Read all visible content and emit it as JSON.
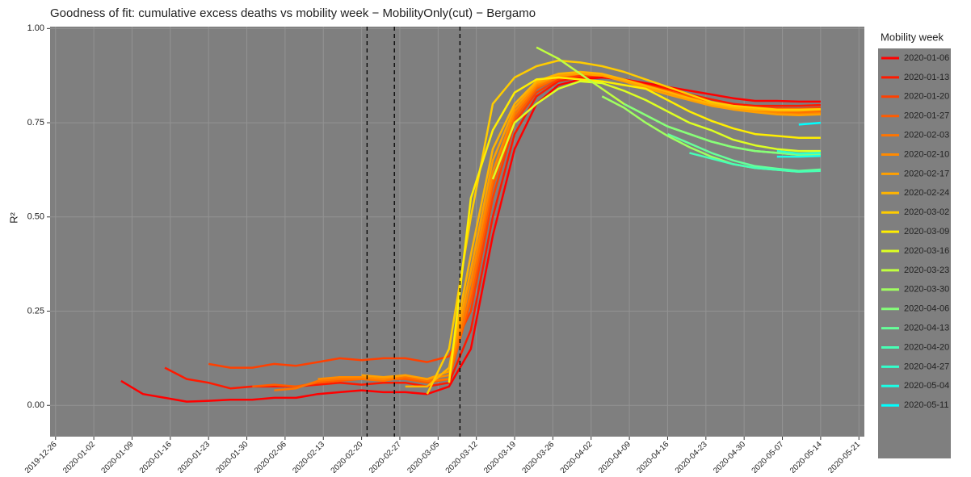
{
  "chart_data": {
    "type": "line",
    "title": "Goodness of fit: cumulative excess deaths vs mobility week − MobilityOnly(cut) − Bergamo",
    "y_label": "R²",
    "legend_title": "Mobility week",
    "legend": "right",
    "grid": true,
    "xlim": [
      "2019-12-25",
      "2020-05-22"
    ],
    "xticks": [
      "2019-12-26",
      "2020-01-02",
      "2020-01-09",
      "2020-01-16",
      "2020-01-23",
      "2020-01-30",
      "2020-02-06",
      "2020-02-13",
      "2020-02-20",
      "2020-02-27",
      "2020-03-05",
      "2020-03-12",
      "2020-03-19",
      "2020-03-26",
      "2020-04-02",
      "2020-04-09",
      "2020-04-16",
      "2020-04-23",
      "2020-04-30",
      "2020-05-07",
      "2020-05-14",
      "2020-05-21"
    ],
    "ylim": [
      -0.083,
      1.005
    ],
    "yticks": [
      {
        "value": 0,
        "label": "0.00"
      },
      {
        "value": 0.25,
        "label": "0.25"
      },
      {
        "value": 0.5,
        "label": "0.50"
      },
      {
        "value": 0.75,
        "label": "0.75"
      },
      {
        "value": 1,
        "label": "1.00"
      }
    ],
    "vlines": [
      "2020-02-21",
      "2020-02-26",
      "2020-03-09"
    ],
    "x": [
      "2020-01-07",
      "2020-01-11",
      "2020-01-15",
      "2020-01-19",
      "2020-01-23",
      "2020-01-27",
      "2020-01-31",
      "2020-02-04",
      "2020-02-08",
      "2020-02-12",
      "2020-02-16",
      "2020-02-20",
      "2020-02-24",
      "2020-02-28",
      "2020-03-03",
      "2020-03-07",
      "2020-03-11",
      "2020-03-15",
      "2020-03-19",
      "2020-03-23",
      "2020-03-27",
      "2020-03-31",
      "2020-04-04",
      "2020-04-08",
      "2020-04-12",
      "2020-04-16",
      "2020-04-20",
      "2020-04-24",
      "2020-04-28",
      "2020-05-02",
      "2020-05-06",
      "2020-05-10",
      "2020-05-14"
    ],
    "series": [
      {
        "name": "2020-01-06",
        "color": "#ff0000",
        "values": [
          0.065,
          0.03,
          0.02,
          0.01,
          0.012,
          0.015,
          0.015,
          0.02,
          0.02,
          0.03,
          0.035,
          0.04,
          0.035,
          0.035,
          0.03,
          0.05,
          0.15,
          0.45,
          0.68,
          0.8,
          0.85,
          0.865,
          0.87,
          0.865,
          0.855,
          0.845,
          0.835,
          0.825,
          0.815,
          0.808,
          0.808,
          0.806,
          0.806
        ]
      },
      {
        "name": "2020-01-13",
        "color": "#ff1a00",
        "values": [
          null,
          null,
          0.1,
          0.07,
          0.06,
          0.045,
          0.05,
          0.05,
          0.05,
          0.055,
          0.06,
          0.055,
          0.06,
          0.06,
          0.05,
          0.06,
          0.2,
          0.5,
          0.72,
          0.82,
          0.86,
          0.87,
          0.875,
          0.865,
          0.85,
          0.84,
          0.825,
          0.812,
          0.8,
          0.795,
          0.795,
          0.795,
          0.797
        ]
      },
      {
        "name": "2020-01-20",
        "color": "#ff4000",
        "values": [
          null,
          null,
          null,
          null,
          0.11,
          0.1,
          0.1,
          0.11,
          0.105,
          0.115,
          0.125,
          0.12,
          0.125,
          0.125,
          0.115,
          0.13,
          0.25,
          0.55,
          0.75,
          0.83,
          0.865,
          0.875,
          0.875,
          0.862,
          0.848,
          0.835,
          0.82,
          0.805,
          0.795,
          0.79,
          0.788,
          0.787,
          0.79
        ]
      },
      {
        "name": "2020-01-27",
        "color": "#ff5c00",
        "values": [
          null,
          null,
          null,
          null,
          null,
          null,
          0.05,
          0.055,
          0.05,
          0.06,
          0.065,
          0.07,
          0.07,
          0.07,
          0.06,
          0.07,
          0.28,
          0.58,
          0.76,
          0.84,
          0.87,
          0.88,
          0.878,
          0.865,
          0.85,
          0.835,
          0.82,
          0.805,
          0.795,
          0.785,
          0.782,
          0.78,
          0.782
        ]
      },
      {
        "name": "2020-02-03",
        "color": "#ff7400",
        "values": [
          null,
          null,
          null,
          null,
          null,
          null,
          null,
          0.04,
          0.045,
          0.065,
          0.07,
          0.07,
          0.065,
          0.075,
          0.065,
          0.07,
          0.3,
          0.6,
          0.77,
          0.845,
          0.87,
          0.88,
          0.875,
          0.862,
          0.845,
          0.83,
          0.815,
          0.8,
          0.79,
          0.782,
          0.778,
          0.776,
          0.778
        ]
      },
      {
        "name": "2020-02-10",
        "color": "#ff8a00",
        "values": [
          null,
          null,
          null,
          null,
          null,
          null,
          null,
          null,
          null,
          0.07,
          0.075,
          0.075,
          0.07,
          0.08,
          0.07,
          0.08,
          0.33,
          0.62,
          0.78,
          0.85,
          0.875,
          0.882,
          0.878,
          0.86,
          0.845,
          0.83,
          0.815,
          0.8,
          0.788,
          0.78,
          0.775,
          0.772,
          0.775
        ]
      },
      {
        "name": "2020-02-17",
        "color": "#ffa000",
        "values": [
          null,
          null,
          null,
          null,
          null,
          null,
          null,
          null,
          null,
          null,
          null,
          0.08,
          0.075,
          0.08,
          0.07,
          0.09,
          0.36,
          0.65,
          0.79,
          0.855,
          0.875,
          0.88,
          0.875,
          0.86,
          0.842,
          0.825,
          0.81,
          0.795,
          0.785,
          0.778,
          0.772,
          0.77,
          0.772
        ]
      },
      {
        "name": "2020-02-24",
        "color": "#ffb400",
        "values": [
          null,
          null,
          null,
          null,
          null,
          null,
          null,
          null,
          null,
          null,
          null,
          null,
          null,
          0.05,
          0.05,
          0.1,
          0.4,
          0.68,
          0.8,
          0.86,
          0.88,
          0.885,
          0.88,
          0.865,
          0.848,
          0.832,
          0.815,
          0.8,
          0.79,
          0.785,
          0.782,
          0.782,
          0.785
        ]
      },
      {
        "name": "2020-03-02",
        "color": "#ffcc00",
        "values": [
          null,
          null,
          null,
          null,
          null,
          null,
          null,
          null,
          null,
          null,
          null,
          null,
          null,
          null,
          0.03,
          0.15,
          0.5,
          0.8,
          0.87,
          0.9,
          0.915,
          0.91,
          0.9,
          0.885,
          0.865,
          0.845,
          0.825,
          0.805,
          0.795,
          0.79,
          0.785,
          0.785,
          0.786
        ]
      },
      {
        "name": "2020-03-09",
        "color": "#ffee00",
        "values": [
          null,
          null,
          null,
          null,
          null,
          null,
          null,
          null,
          null,
          null,
          null,
          null,
          null,
          null,
          null,
          0.06,
          0.55,
          0.73,
          0.83,
          0.865,
          0.87,
          0.865,
          0.86,
          0.85,
          0.84,
          0.81,
          0.78,
          0.755,
          0.735,
          0.72,
          0.715,
          0.71,
          0.71
        ]
      },
      {
        "name": "2020-03-16",
        "color": "#ddff22",
        "values": [
          null,
          null,
          null,
          null,
          null,
          null,
          null,
          null,
          null,
          null,
          null,
          null,
          null,
          null,
          null,
          null,
          null,
          0.6,
          0.75,
          0.8,
          0.84,
          0.86,
          0.855,
          0.835,
          0.81,
          0.78,
          0.75,
          0.73,
          0.705,
          0.69,
          0.68,
          0.675,
          0.675
        ]
      },
      {
        "name": "2020-03-23",
        "color": "#c0ff40",
        "values": [
          null,
          null,
          null,
          null,
          null,
          null,
          null,
          null,
          null,
          null,
          null,
          null,
          null,
          null,
          null,
          null,
          null,
          null,
          null,
          0.95,
          0.92,
          0.88,
          0.84,
          0.8,
          0.77,
          0.74,
          0.72,
          0.7,
          0.685,
          0.675,
          0.67,
          0.665,
          0.665
        ]
      },
      {
        "name": "2020-03-30",
        "color": "#a0ff60",
        "values": [
          null,
          null,
          null,
          null,
          null,
          null,
          null,
          null,
          null,
          null,
          null,
          null,
          null,
          null,
          null,
          null,
          null,
          null,
          null,
          null,
          null,
          null,
          0.82,
          0.79,
          0.75,
          0.715,
          0.685,
          0.66,
          0.64,
          0.63,
          0.625,
          0.62,
          0.625
        ]
      },
      {
        "name": "2020-04-06",
        "color": "#85ff7a",
        "values": [
          null,
          null,
          null,
          null,
          null,
          null,
          null,
          null,
          null,
          null,
          null,
          null,
          null,
          null,
          null,
          null,
          null,
          null,
          null,
          null,
          null,
          null,
          null,
          0.8,
          0.77,
          0.74,
          0.72,
          0.7,
          0.685,
          0.675,
          0.67,
          0.665,
          0.665
        ]
      },
      {
        "name": "2020-04-13",
        "color": "#66ff99",
        "values": [
          null,
          null,
          null,
          null,
          null,
          null,
          null,
          null,
          null,
          null,
          null,
          null,
          null,
          null,
          null,
          null,
          null,
          null,
          null,
          null,
          null,
          null,
          null,
          null,
          null,
          0.72,
          0.695,
          0.67,
          0.65,
          0.635,
          0.628,
          0.622,
          0.626
        ]
      },
      {
        "name": "2020-04-20",
        "color": "#47ffb5",
        "values": [
          null,
          null,
          null,
          null,
          null,
          null,
          null,
          null,
          null,
          null,
          null,
          null,
          null,
          null,
          null,
          null,
          null,
          null,
          null,
          null,
          null,
          null,
          null,
          null,
          null,
          null,
          0.67,
          0.655,
          0.64,
          0.63,
          0.625,
          0.62,
          0.622
        ]
      },
      {
        "name": "2020-04-27",
        "color": "#33ffcc",
        "values": [
          null,
          null,
          null,
          null,
          null,
          null,
          null,
          null,
          null,
          null,
          null,
          null,
          null,
          null,
          null,
          null,
          null,
          null,
          null,
          null,
          null,
          null,
          null,
          null,
          null,
          null,
          null,
          null,
          null,
          null,
          0.675,
          0.668,
          0.67
        ]
      },
      {
        "name": "2020-05-04",
        "color": "#1affe6",
        "values": [
          null,
          null,
          null,
          null,
          null,
          null,
          null,
          null,
          null,
          null,
          null,
          null,
          null,
          null,
          null,
          null,
          null,
          null,
          null,
          null,
          null,
          null,
          null,
          null,
          null,
          null,
          null,
          null,
          null,
          null,
          0.66,
          0.66,
          0.662
        ]
      },
      {
        "name": "2020-05-11",
        "color": "#00ffff",
        "values": [
          null,
          null,
          null,
          null,
          null,
          null,
          null,
          null,
          null,
          null,
          null,
          null,
          null,
          null,
          null,
          null,
          null,
          null,
          null,
          null,
          null,
          null,
          null,
          null,
          null,
          null,
          null,
          null,
          null,
          null,
          null,
          0.745,
          0.75
        ]
      }
    ]
  }
}
